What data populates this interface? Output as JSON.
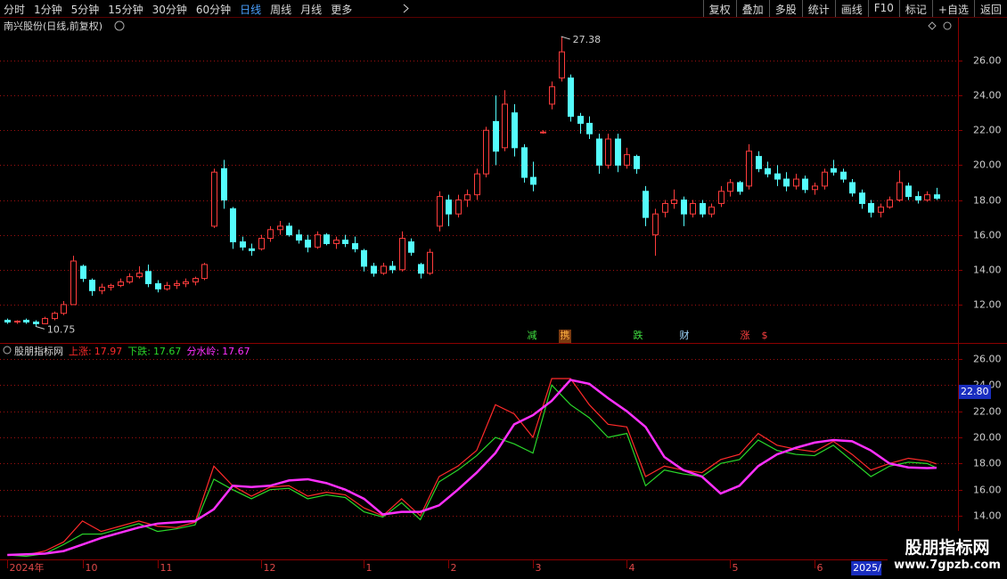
{
  "toolbar": {
    "left": [
      "分时",
      "1分钟",
      "5分钟",
      "15分钟",
      "30分钟",
      "60分钟",
      "日线",
      "周线",
      "月线",
      "更多"
    ],
    "right": [
      "复权",
      "叠加",
      "多股",
      "统计",
      "画线",
      "F10",
      "标记",
      "+自选",
      "返回"
    ]
  },
  "chart_data": [
    {
      "type": "candlestick",
      "title": "南兴股份(日线,前复权)",
      "up_color": "#ff3c3c",
      "down_color": "#54fcfc",
      "grid": true,
      "xlim": [
        -0.5,
        101
      ],
      "ylim": [
        9.8,
        28.35
      ],
      "yticks": [
        {
          "value": 12,
          "label": "12.00"
        },
        {
          "value": 14,
          "label": "14.00"
        },
        {
          "value": 16,
          "label": "16.00"
        },
        {
          "value": 18,
          "label": "18.00"
        },
        {
          "value": 20,
          "label": "20.00"
        },
        {
          "value": 22,
          "label": "22.00"
        },
        {
          "value": 24,
          "label": "24.00"
        },
        {
          "value": 26,
          "label": "26.00"
        }
      ],
      "open": [
        11.1,
        11.0,
        11.1,
        11.0,
        10.9,
        11.2,
        11.5,
        12.0,
        14.2,
        13.4,
        12.8,
        13.0,
        13.1,
        13.3,
        13.6,
        13.9,
        13.2,
        12.9,
        13.1,
        13.2,
        13.3,
        13.5,
        16.5,
        19.8,
        17.5,
        15.6,
        15.2,
        15.2,
        15.8,
        16.3,
        16.5,
        16.0,
        15.7,
        15.3,
        16.0,
        15.5,
        15.7,
        15.5,
        15.1,
        14.2,
        13.8,
        14.2,
        14.0,
        15.6,
        14.3,
        13.8,
        16.5,
        18.0,
        17.2,
        18.0,
        18.3,
        19.5,
        22.5,
        21.0,
        23.0,
        21.0,
        19.3,
        21.9,
        23.5,
        25.0,
        25.0,
        22.8,
        22.4,
        21.5,
        20.0,
        21.5,
        20.0,
        20.5,
        18.5,
        16.0,
        17.3,
        17.8,
        18.0,
        17.2,
        17.8,
        17.2,
        17.8,
        18.5,
        19.0,
        18.8,
        20.5,
        19.8,
        19.5,
        19.2,
        18.8,
        19.2,
        18.6,
        18.8,
        19.8,
        19.6,
        19.0,
        18.4,
        17.8,
        17.3,
        17.6,
        18.0,
        18.8,
        18.2,
        18.0,
        18.3
      ],
      "high": [
        11.2,
        11.1,
        11.2,
        11.1,
        11.3,
        11.6,
        12.2,
        14.8,
        14.3,
        13.5,
        13.2,
        13.2,
        13.5,
        13.8,
        14.2,
        14.3,
        13.4,
        13.3,
        13.4,
        13.5,
        13.6,
        14.4,
        19.8,
        20.3,
        17.6,
        15.9,
        15.5,
        16.0,
        16.5,
        16.8,
        16.7,
        16.3,
        16.0,
        16.2,
        16.1,
        15.9,
        16.0,
        15.9,
        15.2,
        14.4,
        14.4,
        14.5,
        16.2,
        15.8,
        14.4,
        15.2,
        18.5,
        18.3,
        18.3,
        18.6,
        19.8,
        22.2,
        24.0,
        24.3,
        23.5,
        21.2,
        20.2,
        22.0,
        24.8,
        27.38,
        25.2,
        23.0,
        22.8,
        21.8,
        21.8,
        21.8,
        21.0,
        20.6,
        18.8,
        17.5,
        18.0,
        18.6,
        18.2,
        18.0,
        18.0,
        17.8,
        18.8,
        19.2,
        19.1,
        21.2,
        20.8,
        20.2,
        20.0,
        19.6,
        19.5,
        19.4,
        19.0,
        19.8,
        20.3,
        19.8,
        19.2,
        18.6,
        18.0,
        17.8,
        18.2,
        19.7,
        19.0,
        18.5,
        18.5,
        18.7
      ],
      "low": [
        10.9,
        10.9,
        10.9,
        10.75,
        10.9,
        11.1,
        11.4,
        12.0,
        13.3,
        12.5,
        12.6,
        12.8,
        13.0,
        13.2,
        13.5,
        13.0,
        12.7,
        12.8,
        12.9,
        13.0,
        13.1,
        13.4,
        16.4,
        17.5,
        15.2,
        15.1,
        14.8,
        15.1,
        15.6,
        16.0,
        15.9,
        15.5,
        15.0,
        15.2,
        15.4,
        15.2,
        15.3,
        15.0,
        13.9,
        13.6,
        13.7,
        13.8,
        13.9,
        14.8,
        13.5,
        13.7,
        16.2,
        16.5,
        17.0,
        17.6,
        18.0,
        19.3,
        20.0,
        20.8,
        20.5,
        19.0,
        18.5,
        21.8,
        23.2,
        24.8,
        22.5,
        21.8,
        21.5,
        19.5,
        19.8,
        19.6,
        19.8,
        19.5,
        16.5,
        14.8,
        17.0,
        17.5,
        16.5,
        17.0,
        17.0,
        17.0,
        17.6,
        18.2,
        18.3,
        18.6,
        19.6,
        19.3,
        18.8,
        18.5,
        18.6,
        18.4,
        18.3,
        18.6,
        19.4,
        19.0,
        18.2,
        17.5,
        17.0,
        17.0,
        17.5,
        17.9,
        18.0,
        17.8,
        17.9,
        18.0
      ],
      "close": [
        11.0,
        11.05,
        11.0,
        10.9,
        11.2,
        11.5,
        12.0,
        14.5,
        13.5,
        12.8,
        13.0,
        13.1,
        13.3,
        13.6,
        13.8,
        13.2,
        12.9,
        13.1,
        13.2,
        13.3,
        13.5,
        14.3,
        19.6,
        18.0,
        15.6,
        15.3,
        15.1,
        15.8,
        16.3,
        16.5,
        16.0,
        15.7,
        15.3,
        16.0,
        15.5,
        15.7,
        15.5,
        15.2,
        14.2,
        13.8,
        14.2,
        14.0,
        15.8,
        15.0,
        13.8,
        15.0,
        18.2,
        17.2,
        18.0,
        18.3,
        19.5,
        22.0,
        20.8,
        23.5,
        21.0,
        19.3,
        18.9,
        21.9,
        24.5,
        26.5,
        22.8,
        22.4,
        21.8,
        20.0,
        21.5,
        20.0,
        20.6,
        19.8,
        17.0,
        17.2,
        17.8,
        18.0,
        17.2,
        17.8,
        17.2,
        17.6,
        18.5,
        19.0,
        18.5,
        20.8,
        19.8,
        19.5,
        19.2,
        18.8,
        19.2,
        18.6,
        18.8,
        19.6,
        19.6,
        19.2,
        18.4,
        17.8,
        17.3,
        17.6,
        18.0,
        19.0,
        18.2,
        18.0,
        18.3,
        18.1
      ],
      "signals": [
        {
          "text": "减",
          "color": "#40e040"
        },
        {
          "text": "携",
          "color": "#ffb040"
        },
        {
          "text": "跌",
          "color": "#40e040"
        },
        {
          "text": "财",
          "color": "#a0d8ff"
        },
        {
          "text": "涨",
          "color": "#ff4040"
        },
        {
          "text": "$",
          "color": "#ff4040"
        }
      ]
    },
    {
      "type": "line",
      "title": "股朋指标网",
      "legend_separator": ":",
      "grid": true,
      "xlim": [
        -0.5,
        101
      ],
      "ylim": [
        10.66,
        27.16
      ],
      "yticks": [
        {
          "value": 14,
          "label": "14.00"
        },
        {
          "value": 16,
          "label": "16.00"
        },
        {
          "value": 18,
          "label": "18.00"
        },
        {
          "value": 20,
          "label": "20.00"
        },
        {
          "value": 22,
          "label": "22.00"
        },
        {
          "value": 24,
          "label": "24.00"
        },
        {
          "value": 26,
          "label": "26.00"
        }
      ],
      "xticks": [
        {
          "value": 0,
          "label": "2024年"
        },
        {
          "value": 8,
          "label": "10"
        },
        {
          "value": 16,
          "label": "11"
        },
        {
          "value": 27,
          "label": "12"
        },
        {
          "value": 38,
          "label": "1"
        },
        {
          "value": 47,
          "label": "2"
        },
        {
          "value": 56,
          "label": "3"
        },
        {
          "value": 66,
          "label": "4"
        },
        {
          "value": 77,
          "label": "5"
        },
        {
          "value": 86,
          "label": "6"
        }
      ],
      "cursor_date": "2025/",
      "cursor_value": {
        "value": 22.8,
        "label": "22.80"
      },
      "x": [
        0,
        2,
        4,
        6,
        8,
        10,
        12,
        14,
        16,
        18,
        20,
        22,
        24,
        26,
        28,
        30,
        32,
        34,
        36,
        38,
        40,
        42,
        44,
        46,
        48,
        50,
        52,
        54,
        56,
        58,
        60,
        62,
        64,
        66,
        68,
        70,
        72,
        74,
        76,
        78,
        80,
        82,
        84,
        86,
        88,
        90,
        92,
        94,
        96,
        98,
        99
      ],
      "series": [
        {
          "name": "上涨",
          "color": "#ff2a2a",
          "values": [
            11.0,
            11.0,
            11.3,
            12.0,
            13.6,
            12.8,
            13.2,
            13.6,
            13.2,
            13.1,
            13.5,
            17.8,
            16.3,
            15.5,
            16.2,
            16.3,
            15.5,
            15.8,
            15.6,
            14.6,
            14.0,
            15.3,
            14.0,
            17.0,
            17.8,
            19.0,
            22.5,
            21.8,
            20.0,
            24.5,
            24.5,
            22.5,
            21.0,
            20.8,
            17.0,
            17.8,
            17.5,
            17.3,
            18.3,
            18.7,
            20.3,
            19.4,
            19.1,
            18.9,
            19.7,
            18.7,
            17.5,
            18.0,
            18.4,
            18.2,
            17.97
          ]
        },
        {
          "name": "下跌",
          "color": "#2ad82a",
          "values": [
            11.0,
            10.9,
            11.1,
            11.8,
            12.6,
            12.6,
            13.0,
            13.4,
            12.8,
            13.0,
            13.3,
            16.8,
            16.0,
            15.3,
            16.0,
            16.1,
            15.3,
            15.6,
            15.4,
            14.3,
            13.9,
            15.0,
            13.7,
            16.6,
            17.5,
            18.6,
            20.0,
            19.5,
            18.8,
            24.0,
            22.5,
            21.5,
            20.0,
            20.3,
            16.3,
            17.5,
            17.2,
            17.0,
            18.0,
            18.3,
            19.8,
            19.0,
            18.7,
            18.6,
            19.4,
            18.2,
            17.0,
            17.8,
            18.1,
            18.0,
            17.67
          ]
        },
        {
          "name": "分水岭",
          "color": "#ff30ff",
          "values": [
            11.0,
            11.05,
            11.1,
            11.3,
            11.8,
            12.3,
            12.7,
            13.1,
            13.4,
            13.5,
            13.6,
            14.5,
            16.3,
            16.2,
            16.3,
            16.7,
            16.8,
            16.5,
            16.0,
            15.3,
            14.1,
            14.3,
            14.3,
            14.8,
            16.0,
            17.3,
            18.8,
            21.0,
            21.7,
            22.8,
            24.4,
            24.1,
            23.0,
            22.0,
            20.8,
            18.5,
            17.5,
            17.0,
            15.7,
            16.3,
            17.8,
            18.7,
            19.2,
            19.6,
            19.8,
            19.7,
            19.0,
            18.0,
            17.7,
            17.65,
            17.67
          ]
        }
      ]
    }
  ],
  "watermark": {
    "title": "股朋指标网",
    "url": "www.7gpzb.com"
  }
}
